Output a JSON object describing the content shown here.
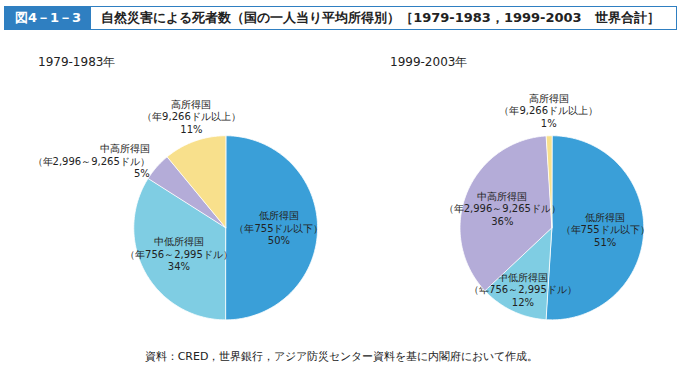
{
  "figure_label": "図4－1－3",
  "title": "自然災害による死者数（国の一人当り平均所得別）［1979-1983，1999-2003　世界合計］",
  "source": "資料：CRED，世界銀行，アジア防災センター資料を基に内閣府において作成。",
  "chart_data": [
    {
      "type": "pie",
      "title": "1979-1983年",
      "categories": [
        "低所得国",
        "中低所得国",
        "中高所得国",
        "高所得国"
      ],
      "income_ranges": [
        "（年755ドル以下）",
        "（年756～2,995ドル）",
        "（年2,996～9,265ドル）",
        "（年9,266ドル以上）"
      ],
      "values": [
        50,
        34,
        5,
        11
      ],
      "value_labels": [
        "50%",
        "34%",
        "5%",
        "11%"
      ],
      "colors": [
        "#3a9fd8",
        "#7fcde3",
        "#b4acd8",
        "#f8e08c"
      ],
      "data_labels": true
    },
    {
      "type": "pie",
      "title": "1999-2003年",
      "categories": [
        "低所得国",
        "中低所得国",
        "中高所得国",
        "高所得国"
      ],
      "income_ranges": [
        "（年755ドル以下）",
        "（年756～2,995ドル）",
        "（年2,996～9,265ドル）",
        "（年9,266ドル以上）"
      ],
      "values": [
        51,
        12,
        36,
        1
      ],
      "value_labels": [
        "51%",
        "12%",
        "36%",
        "1%"
      ],
      "colors": [
        "#3a9fd8",
        "#7fcde3",
        "#b4acd8",
        "#f8e08c"
      ],
      "data_labels": true
    }
  ]
}
